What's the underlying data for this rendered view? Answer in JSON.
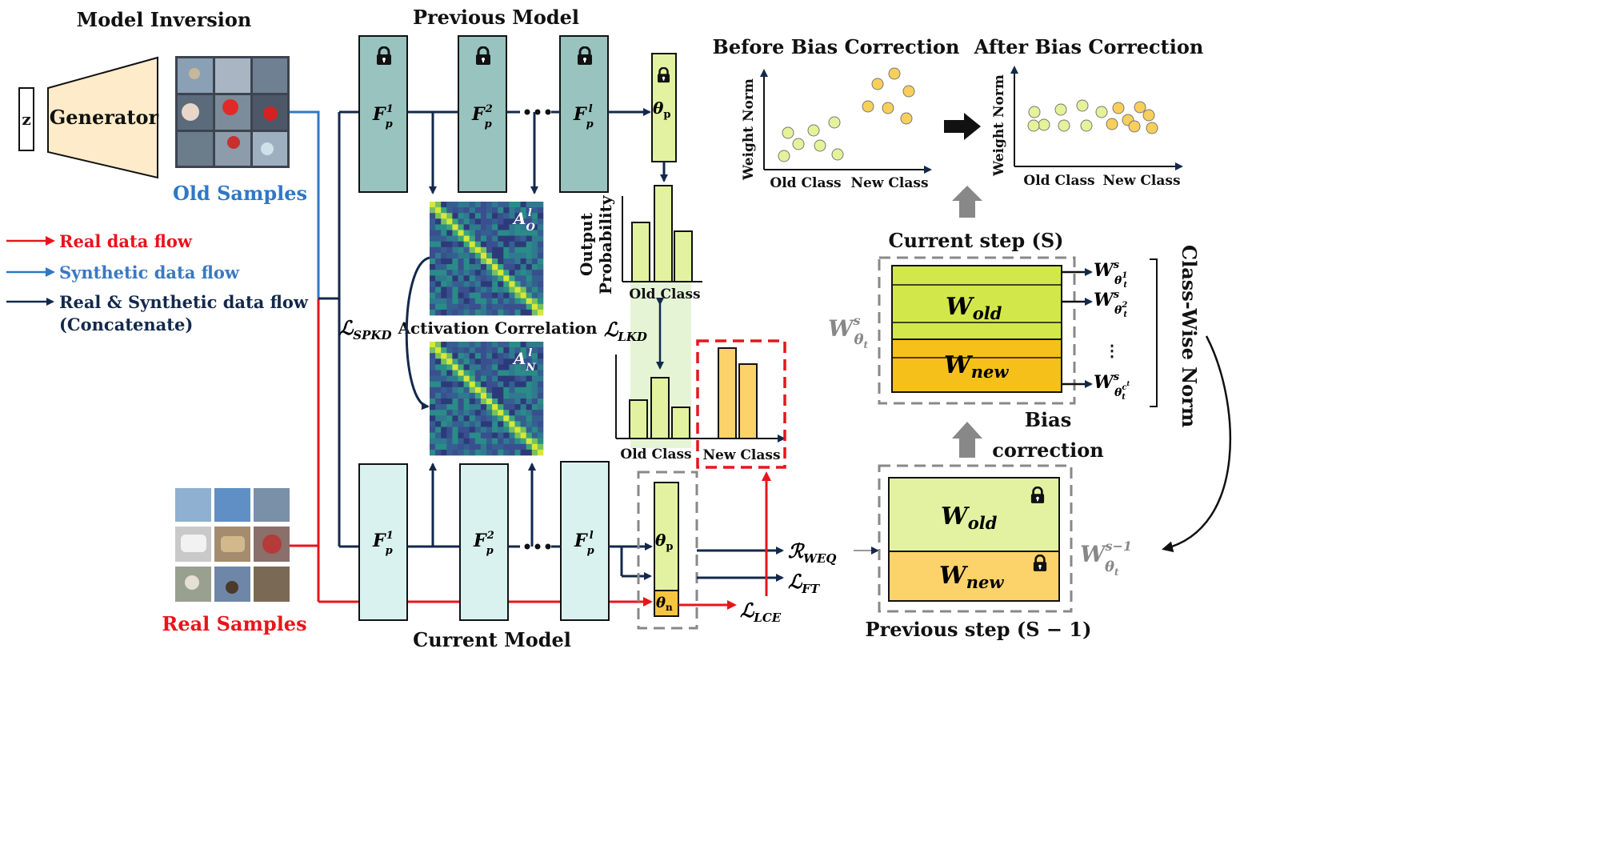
{
  "titles": {
    "model_inversion": "Model Inversion",
    "previous_model": "Previous Model",
    "current_model": "Current Model",
    "before_bias": "Before Bias Correction",
    "after_bias": "After Bias Correction",
    "current_step": "Current step (S)",
    "previous_step": "Previous step (S − 1)",
    "bias_correction_1": "Bias",
    "bias_correction_2": "correction",
    "class_wise_norm": "Class-Wise Norm"
  },
  "generator": {
    "z": "z",
    "label": "Generator"
  },
  "samples": {
    "old": "Old Samples",
    "real": "Real Samples"
  },
  "legend": {
    "real": "Real data flow",
    "synthetic": "Synthetic data flow",
    "concat_1": "Real & Synthetic data flow",
    "concat_2": "(Concatenate)"
  },
  "blocks": {
    "f1": "F",
    "f1_sup": "1",
    "f1_sub": "p",
    "f2": "F",
    "f2_sup": "2",
    "f2_sub": "p",
    "fl": "F",
    "fl_sup": "l",
    "fl_sub": "p",
    "theta_p": "θ",
    "theta_p_sub": "p",
    "theta_n": "θ",
    "theta_n_sub": "n"
  },
  "losses": {
    "spkd": "ℒ",
    "spkd_sub": "SPKD",
    "lkd": "ℒ",
    "lkd_sub": "LKD",
    "lce": "ℒ",
    "lce_sub": "LCE",
    "ft": "ℒ",
    "ft_sub": "FT",
    "weq": "ℛ",
    "weq_sub": "WEQ"
  },
  "activation": {
    "label": "Activation Correlation",
    "ao": "A",
    "ao_sup": "l",
    "ao_sub": "O",
    "an": "A",
    "an_sup": "l",
    "an_sub": "N"
  },
  "prob": {
    "ylabel_1": "Output",
    "ylabel_2": "Probability",
    "old_class": "Old Class",
    "new_class": "New Class"
  },
  "scatter": {
    "ylabel": "Weight Norm",
    "old_class": "Old Class",
    "new_class": "New Class"
  },
  "weights": {
    "w_old": "W",
    "w_old_sub": "old",
    "w_new": "W",
    "w_new_sub": "new",
    "w_theta": "W",
    "w_theta_sup": "s",
    "w_theta_sub": "θ",
    "w_theta_subsub": "t",
    "w_theta_prev_sup": "s−1",
    "w1_sup": "s",
    "w1_subsup": "1",
    "w2_sup": "s",
    "w2_subsup": "2",
    "wc_sup": "s",
    "wc_subsup": "c",
    "wc_subsup_sup": "t",
    "dots": "⋮"
  },
  "colors": {
    "red": "#e8141b",
    "blue": "#2f78c4",
    "dark": "#13294b",
    "block_prev": "#99c3bf",
    "block_cur": "#d9f2f0",
    "theta": "#e2f2a0",
    "theta_n": "#f5c542",
    "w_old": "#d2e84a",
    "w_new": "#f5c01a"
  }
}
